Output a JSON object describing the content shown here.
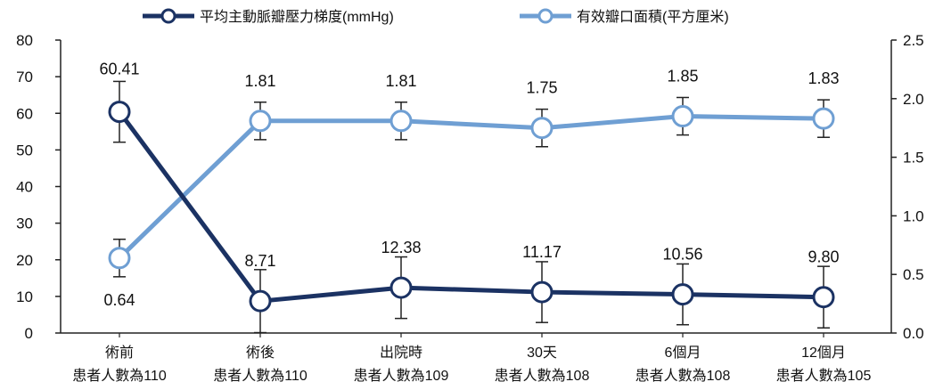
{
  "chart_data": {
    "type": "line",
    "categories": [
      [
        "術前",
        "患者人數為110"
      ],
      [
        "術後",
        "患者人數為110"
      ],
      [
        "出院時",
        "患者人數為109"
      ],
      [
        "30天",
        "患者人數為108"
      ],
      [
        "6個月",
        "患者人數為108"
      ],
      [
        "12個月",
        "患者人數為105"
      ]
    ],
    "series": [
      {
        "name": "平均主動脈瓣壓力梯度(mmHg)",
        "axis": "left",
        "color": "#1b3263",
        "values": [
          60.41,
          8.71,
          12.38,
          11.17,
          10.56,
          9.8
        ],
        "labels": [
          "60.41",
          "8.71",
          "12.38",
          "11.17",
          "10.56",
          "9.80"
        ],
        "error": [
          8.3,
          8.6,
          8.4,
          8.3,
          8.3,
          8.4
        ]
      },
      {
        "name": "有效瓣口面積(平方厘米)",
        "axis": "right",
        "color": "#6f9fd3",
        "values": [
          0.64,
          1.81,
          1.81,
          1.75,
          1.85,
          1.83
        ],
        "labels": [
          "0.64",
          "1.81",
          "1.81",
          "1.75",
          "1.85",
          "1.83"
        ],
        "error": [
          0.16,
          0.16,
          0.16,
          0.16,
          0.16,
          0.16
        ]
      }
    ],
    "y_left": {
      "ylim": [
        0,
        80
      ],
      "ticks": [
        "0",
        "10",
        "20",
        "30",
        "40",
        "50",
        "60",
        "70",
        "80"
      ]
    },
    "y_right": {
      "ylim": [
        0,
        2.5
      ],
      "ticks": [
        "0.0",
        "0.5",
        "1.0",
        "1.5",
        "2.0",
        "2.5"
      ]
    },
    "legend": "top",
    "grid": false
  }
}
